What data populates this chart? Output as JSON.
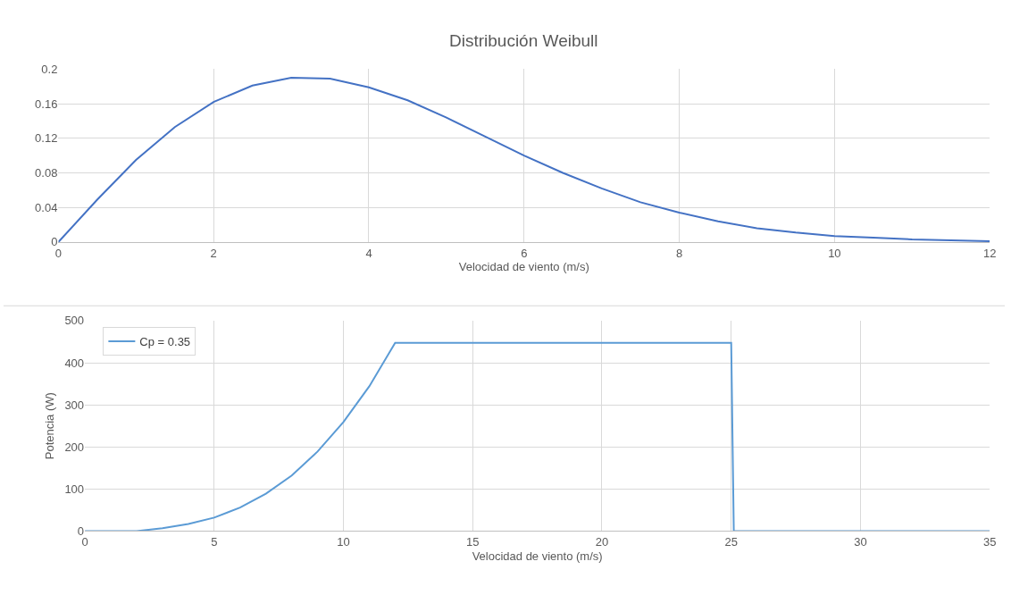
{
  "chart_data": [
    {
      "type": "line",
      "title": "Distribución Weibull",
      "xlabel": "Velocidad de viento (m/s)",
      "x": [
        0,
        0.5,
        1,
        1.5,
        2,
        2.5,
        3,
        3.5,
        4,
        4.5,
        5,
        5.5,
        6,
        6.5,
        7,
        7.5,
        8,
        8.5,
        9,
        9.5,
        10,
        10.5,
        11,
        11.5,
        12
      ],
      "series": [
        {
          "color": "#4472c4",
          "values": [
            0,
            0.049,
            0.095,
            0.133,
            0.162,
            0.181,
            0.19,
            0.189,
            0.179,
            0.164,
            0.144,
            0.122,
            0.1,
            0.08,
            0.062,
            0.046,
            0.034,
            0.024,
            0.016,
            0.011,
            0.007,
            0.005,
            0.003,
            0.002,
            0.001
          ]
        }
      ],
      "xlim": [
        0,
        12
      ],
      "xticks": [
        0,
        2,
        4,
        6,
        8,
        10,
        12
      ],
      "ylim": [
        0,
        0.2
      ],
      "yticks": [
        0,
        0.04,
        0.08,
        0.12,
        0.16,
        0.2
      ],
      "grid": true,
      "legend": false
    },
    {
      "type": "line",
      "xlabel": "Velocidad de viento (m/s)",
      "ylabel": "Potencia (W)",
      "x": [
        0,
        2,
        3,
        4,
        5,
        6,
        7,
        8,
        9,
        10,
        11,
        12,
        25,
        25.1,
        35
      ],
      "series": [
        {
          "name": "Cp = 0.35",
          "color": "#5b9bd5",
          "values": [
            0,
            0,
            7,
            17,
            32,
            56,
            89,
            132,
            189,
            259,
            344,
            447,
            447,
            0,
            0
          ]
        }
      ],
      "xlim": [
        0,
        35
      ],
      "xticks": [
        0,
        5,
        10,
        15,
        20,
        25,
        30,
        35
      ],
      "ylim": [
        0,
        500
      ],
      "yticks": [
        0,
        100,
        200,
        300,
        400,
        500
      ],
      "grid": true,
      "legend": "top left"
    }
  ]
}
